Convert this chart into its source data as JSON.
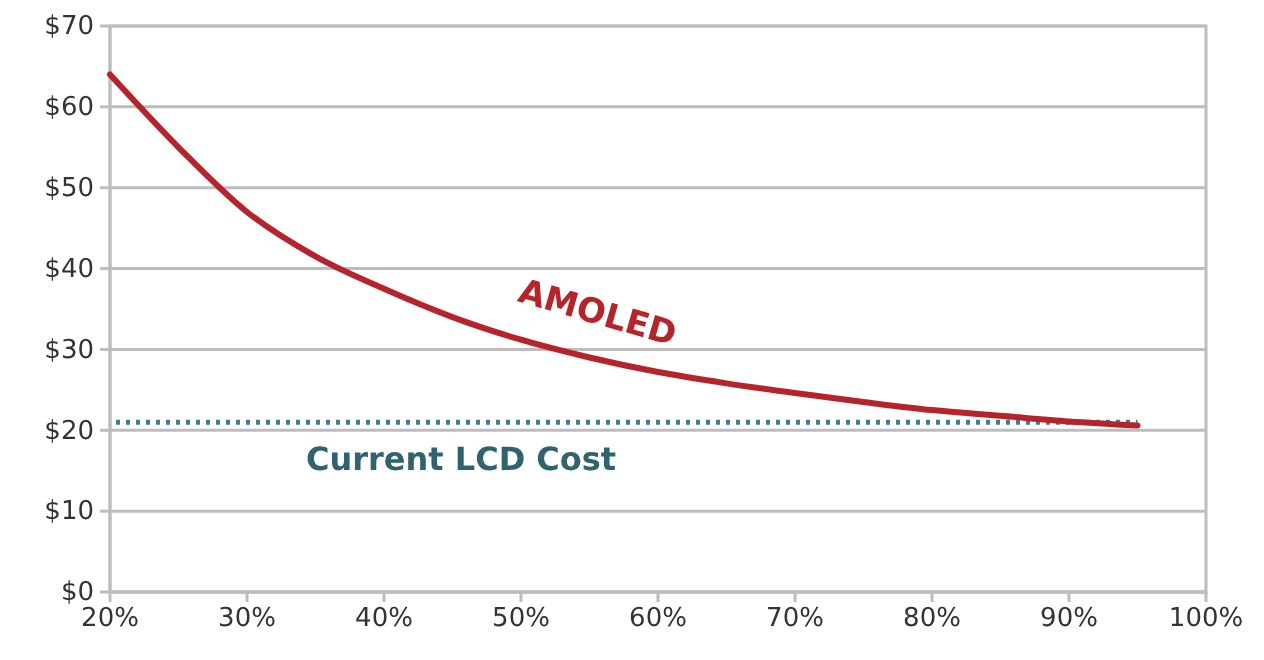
{
  "chart_data": {
    "type": "line",
    "x": [
      20,
      25,
      30,
      35,
      40,
      45,
      50,
      55,
      60,
      65,
      70,
      75,
      80,
      85,
      90,
      95
    ],
    "series": [
      {
        "name": "AMOLED",
        "color": "#b5232b",
        "values": [
          64,
          55,
          47,
          41.5,
          37.5,
          34,
          31.2,
          29,
          27.2,
          25.8,
          24.6,
          23.5,
          22.5,
          21.8,
          21.1,
          20.6
        ]
      }
    ],
    "xlim": [
      20,
      100
    ],
    "xticks": [
      {
        "value": 20,
        "label": "20%"
      },
      {
        "value": 30,
        "label": "30%"
      },
      {
        "value": 40,
        "label": "40%"
      },
      {
        "value": 50,
        "label": "50%"
      },
      {
        "value": 60,
        "label": "60%"
      },
      {
        "value": 70,
        "label": "70%"
      },
      {
        "value": 80,
        "label": "80%"
      },
      {
        "value": 90,
        "label": "90%"
      },
      {
        "value": 100,
        "label": "100%"
      }
    ],
    "ylim": [
      0,
      70
    ],
    "yticks": [
      {
        "value": 0,
        "label": "$0"
      },
      {
        "value": 10,
        "label": "$10"
      },
      {
        "value": 20,
        "label": "$20"
      },
      {
        "value": 30,
        "label": "$30"
      },
      {
        "value": 40,
        "label": "$40"
      },
      {
        "value": 50,
        "label": "$50"
      },
      {
        "value": 60,
        "label": "$60"
      },
      {
        "value": 70,
        "label": "$70"
      }
    ],
    "ref_lines": [
      {
        "axis": "y",
        "value": 21,
        "label": "Current LCD Cost",
        "color": "#3d7f90",
        "line_style": "dotted"
      }
    ],
    "grid": "y",
    "legend": false,
    "marker": "none",
    "line_style": "solid"
  }
}
